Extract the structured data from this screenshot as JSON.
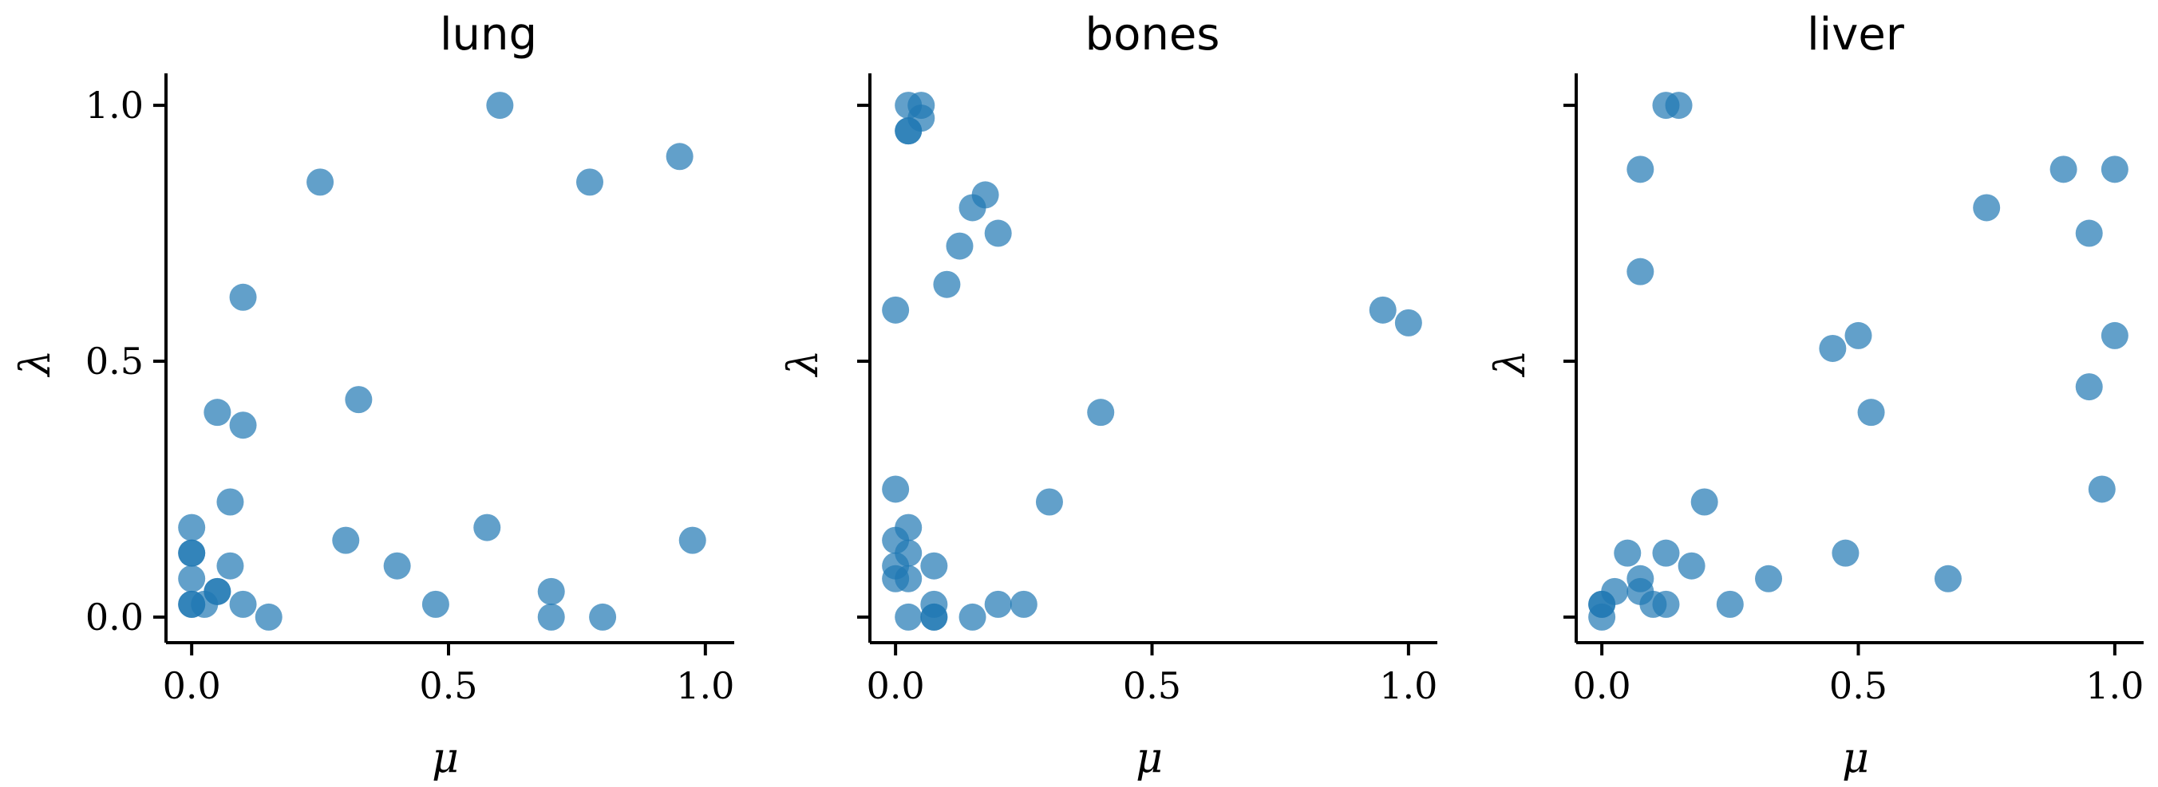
{
  "chart_data": [
    {
      "type": "scatter",
      "title": "lung",
      "xlabel": "μ",
      "ylabel": "λ",
      "xlim": [
        -0.05,
        1.05
      ],
      "ylim": [
        -0.05,
        1.05
      ],
      "xticks": [
        "0.0",
        "0.5",
        "1.0"
      ],
      "yticks": [
        "0.0",
        "0.5",
        "1.0"
      ],
      "xtick_values": [
        0,
        0.5,
        1
      ],
      "ytick_values": [
        0,
        0.5,
        1
      ],
      "color": "#1f77b4",
      "points": [
        [
          0.6,
          1.0
        ],
        [
          0.95,
          0.9
        ],
        [
          0.25,
          0.85
        ],
        [
          0.775,
          0.85
        ],
        [
          0.1,
          0.625
        ],
        [
          0.325,
          0.425
        ],
        [
          0.05,
          0.4
        ],
        [
          0.1,
          0.375
        ],
        [
          0.075,
          0.225
        ],
        [
          0.0,
          0.175
        ],
        [
          0.575,
          0.175
        ],
        [
          0.3,
          0.15
        ],
        [
          0.975,
          0.15
        ],
        [
          0.0,
          0.125
        ],
        [
          0.0,
          0.125
        ],
        [
          0.075,
          0.1
        ],
        [
          0.4,
          0.1
        ],
        [
          0.0,
          0.075
        ],
        [
          0.05,
          0.05
        ],
        [
          0.05,
          0.05
        ],
        [
          0.7,
          0.05
        ],
        [
          0.0,
          0.025
        ],
        [
          0.0,
          0.025
        ],
        [
          0.025,
          0.025
        ],
        [
          0.1,
          0.025
        ],
        [
          0.475,
          0.025
        ],
        [
          0.15,
          0.0
        ],
        [
          0.7,
          0.0
        ],
        [
          0.8,
          0.0
        ]
      ]
    },
    {
      "type": "scatter",
      "title": "bones",
      "xlabel": "μ",
      "ylabel": "λ",
      "xlim": [
        -0.05,
        1.05
      ],
      "ylim": [
        -0.05,
        1.05
      ],
      "xticks": [
        "0.0",
        "0.5",
        "1.0"
      ],
      "yticks": [],
      "xtick_values": [
        0,
        0.5,
        1
      ],
      "ytick_values": [
        0,
        0.5,
        1
      ],
      "color": "#1f77b4",
      "points": [
        [
          0.025,
          1.0
        ],
        [
          0.05,
          1.0
        ],
        [
          0.05,
          0.975
        ],
        [
          0.025,
          0.95
        ],
        [
          0.025,
          0.95
        ],
        [
          0.175,
          0.825
        ],
        [
          0.15,
          0.8
        ],
        [
          0.2,
          0.75
        ],
        [
          0.125,
          0.725
        ],
        [
          0.1,
          0.65
        ],
        [
          0.0,
          0.6
        ],
        [
          0.95,
          0.6
        ],
        [
          1.0,
          0.575
        ],
        [
          0.4,
          0.4
        ],
        [
          0.0,
          0.25
        ],
        [
          0.3,
          0.225
        ],
        [
          0.025,
          0.175
        ],
        [
          0.0,
          0.15
        ],
        [
          0.025,
          0.125
        ],
        [
          0.0,
          0.1
        ],
        [
          0.075,
          0.1
        ],
        [
          0.0,
          0.075
        ],
        [
          0.025,
          0.075
        ],
        [
          0.075,
          0.025
        ],
        [
          0.2,
          0.025
        ],
        [
          0.25,
          0.025
        ],
        [
          0.025,
          0.0
        ],
        [
          0.075,
          0.0
        ],
        [
          0.075,
          0.0
        ],
        [
          0.15,
          0.0
        ]
      ]
    },
    {
      "type": "scatter",
      "title": "liver",
      "xlabel": "μ",
      "ylabel": "λ",
      "xlim": [
        -0.05,
        1.05
      ],
      "ylim": [
        -0.05,
        1.05
      ],
      "xticks": [
        "0.0",
        "0.5",
        "1.0"
      ],
      "yticks": [],
      "xtick_values": [
        0,
        0.5,
        1
      ],
      "ytick_values": [
        0,
        0.5,
        1
      ],
      "color": "#1f77b4",
      "points": [
        [
          0.125,
          1.0
        ],
        [
          0.15,
          1.0
        ],
        [
          0.075,
          0.875
        ],
        [
          0.9,
          0.875
        ],
        [
          1.0,
          0.875
        ],
        [
          0.75,
          0.8
        ],
        [
          0.95,
          0.75
        ],
        [
          0.075,
          0.675
        ],
        [
          0.5,
          0.55
        ],
        [
          1.0,
          0.55
        ],
        [
          0.45,
          0.525
        ],
        [
          0.95,
          0.45
        ],
        [
          0.525,
          0.4
        ],
        [
          0.975,
          0.25
        ],
        [
          0.2,
          0.225
        ],
        [
          0.05,
          0.125
        ],
        [
          0.125,
          0.125
        ],
        [
          0.475,
          0.125
        ],
        [
          0.175,
          0.1
        ],
        [
          0.075,
          0.075
        ],
        [
          0.325,
          0.075
        ],
        [
          0.675,
          0.075
        ],
        [
          0.025,
          0.05
        ],
        [
          0.075,
          0.05
        ],
        [
          0.0,
          0.025
        ],
        [
          0.0,
          0.025
        ],
        [
          0.1,
          0.025
        ],
        [
          0.125,
          0.025
        ],
        [
          0.25,
          0.025
        ],
        [
          0.0,
          0.0
        ]
      ]
    }
  ]
}
